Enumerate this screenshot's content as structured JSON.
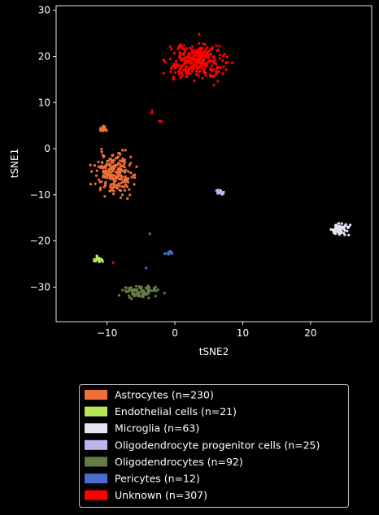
{
  "chart_data": {
    "type": "scatter",
    "title": "",
    "xlabel": "tSNE2",
    "ylabel": "tSNE1",
    "xlim": [
      -17.5,
      29
    ],
    "ylim": [
      -37.5,
      31
    ],
    "xticks": [
      -10,
      0,
      10,
      20
    ],
    "yticks": [
      -30,
      -20,
      -10,
      0,
      10,
      20,
      30
    ],
    "grid": false,
    "legend_placement": "below",
    "series": [
      {
        "name": "Astrocytes (n=230)",
        "color": "#f07038",
        "count": 230,
        "clusters": [
          {
            "cx": -8.8,
            "cy": -5.5,
            "sx": 2.5,
            "sy": 3.8,
            "n": 215
          },
          {
            "cx": -10.5,
            "cy": 4.3,
            "sx": 0.6,
            "sy": 0.5,
            "n": 15
          }
        ]
      },
      {
        "name": "Endothelial cells (n=21)",
        "color": "#b6e856",
        "count": 21,
        "clusters": [
          {
            "cx": -11.3,
            "cy": -24.0,
            "sx": 0.7,
            "sy": 0.6,
            "n": 21
          }
        ]
      },
      {
        "name": "Microglia (n=63)",
        "color": "#e4e4f4",
        "count": 63,
        "clusters": [
          {
            "cx": 24.2,
            "cy": -17.5,
            "sx": 1.2,
            "sy": 1.1,
            "n": 63
          }
        ]
      },
      {
        "name": "Oligodendrocyte progenitor cells (n=25)",
        "color": "#c0b4ee",
        "count": 25,
        "clusters": [
          {
            "cx": 6.6,
            "cy": -9.5,
            "sx": 0.6,
            "sy": 0.5,
            "n": 25
          }
        ]
      },
      {
        "name": "Oligodendrocytes (n=92)",
        "color": "#667a48",
        "count": 92,
        "clusters": [
          {
            "cx": -5.0,
            "cy": -31.0,
            "sx": 2.5,
            "sy": 1.2,
            "n": 92
          }
        ]
      },
      {
        "name": "Pericytes (n=12)",
        "color": "#4a6ccc",
        "count": 12,
        "clusters": [
          {
            "cx": -0.8,
            "cy": -22.6,
            "sx": 0.3,
            "sy": 0.3,
            "n": 8
          },
          {
            "cx": -3.8,
            "cy": -18.5,
            "sx": 0.1,
            "sy": 0.1,
            "n": 1
          },
          {
            "cx": -4.2,
            "cy": -25.8,
            "sx": 0.1,
            "sy": 0.1,
            "n": 1
          },
          {
            "cx": -1.5,
            "cy": -22.8,
            "sx": 0.2,
            "sy": 0.2,
            "n": 2
          }
        ]
      },
      {
        "name": "Unknown (n=307)",
        "color": "#ff0000",
        "count": 307,
        "clusters": [
          {
            "cx": 3.3,
            "cy": 19.0,
            "sx": 3.6,
            "sy": 3.6,
            "n": 302
          },
          {
            "cx": -3.2,
            "cy": 8.0,
            "sx": 0.2,
            "sy": 0.2,
            "n": 2
          },
          {
            "cx": -9.1,
            "cy": -24.7,
            "sx": 0.1,
            "sy": 0.1,
            "n": 1
          },
          {
            "cx": -2.0,
            "cy": 6.0,
            "sx": 0.3,
            "sy": 0.3,
            "n": 2
          }
        ]
      }
    ]
  }
}
